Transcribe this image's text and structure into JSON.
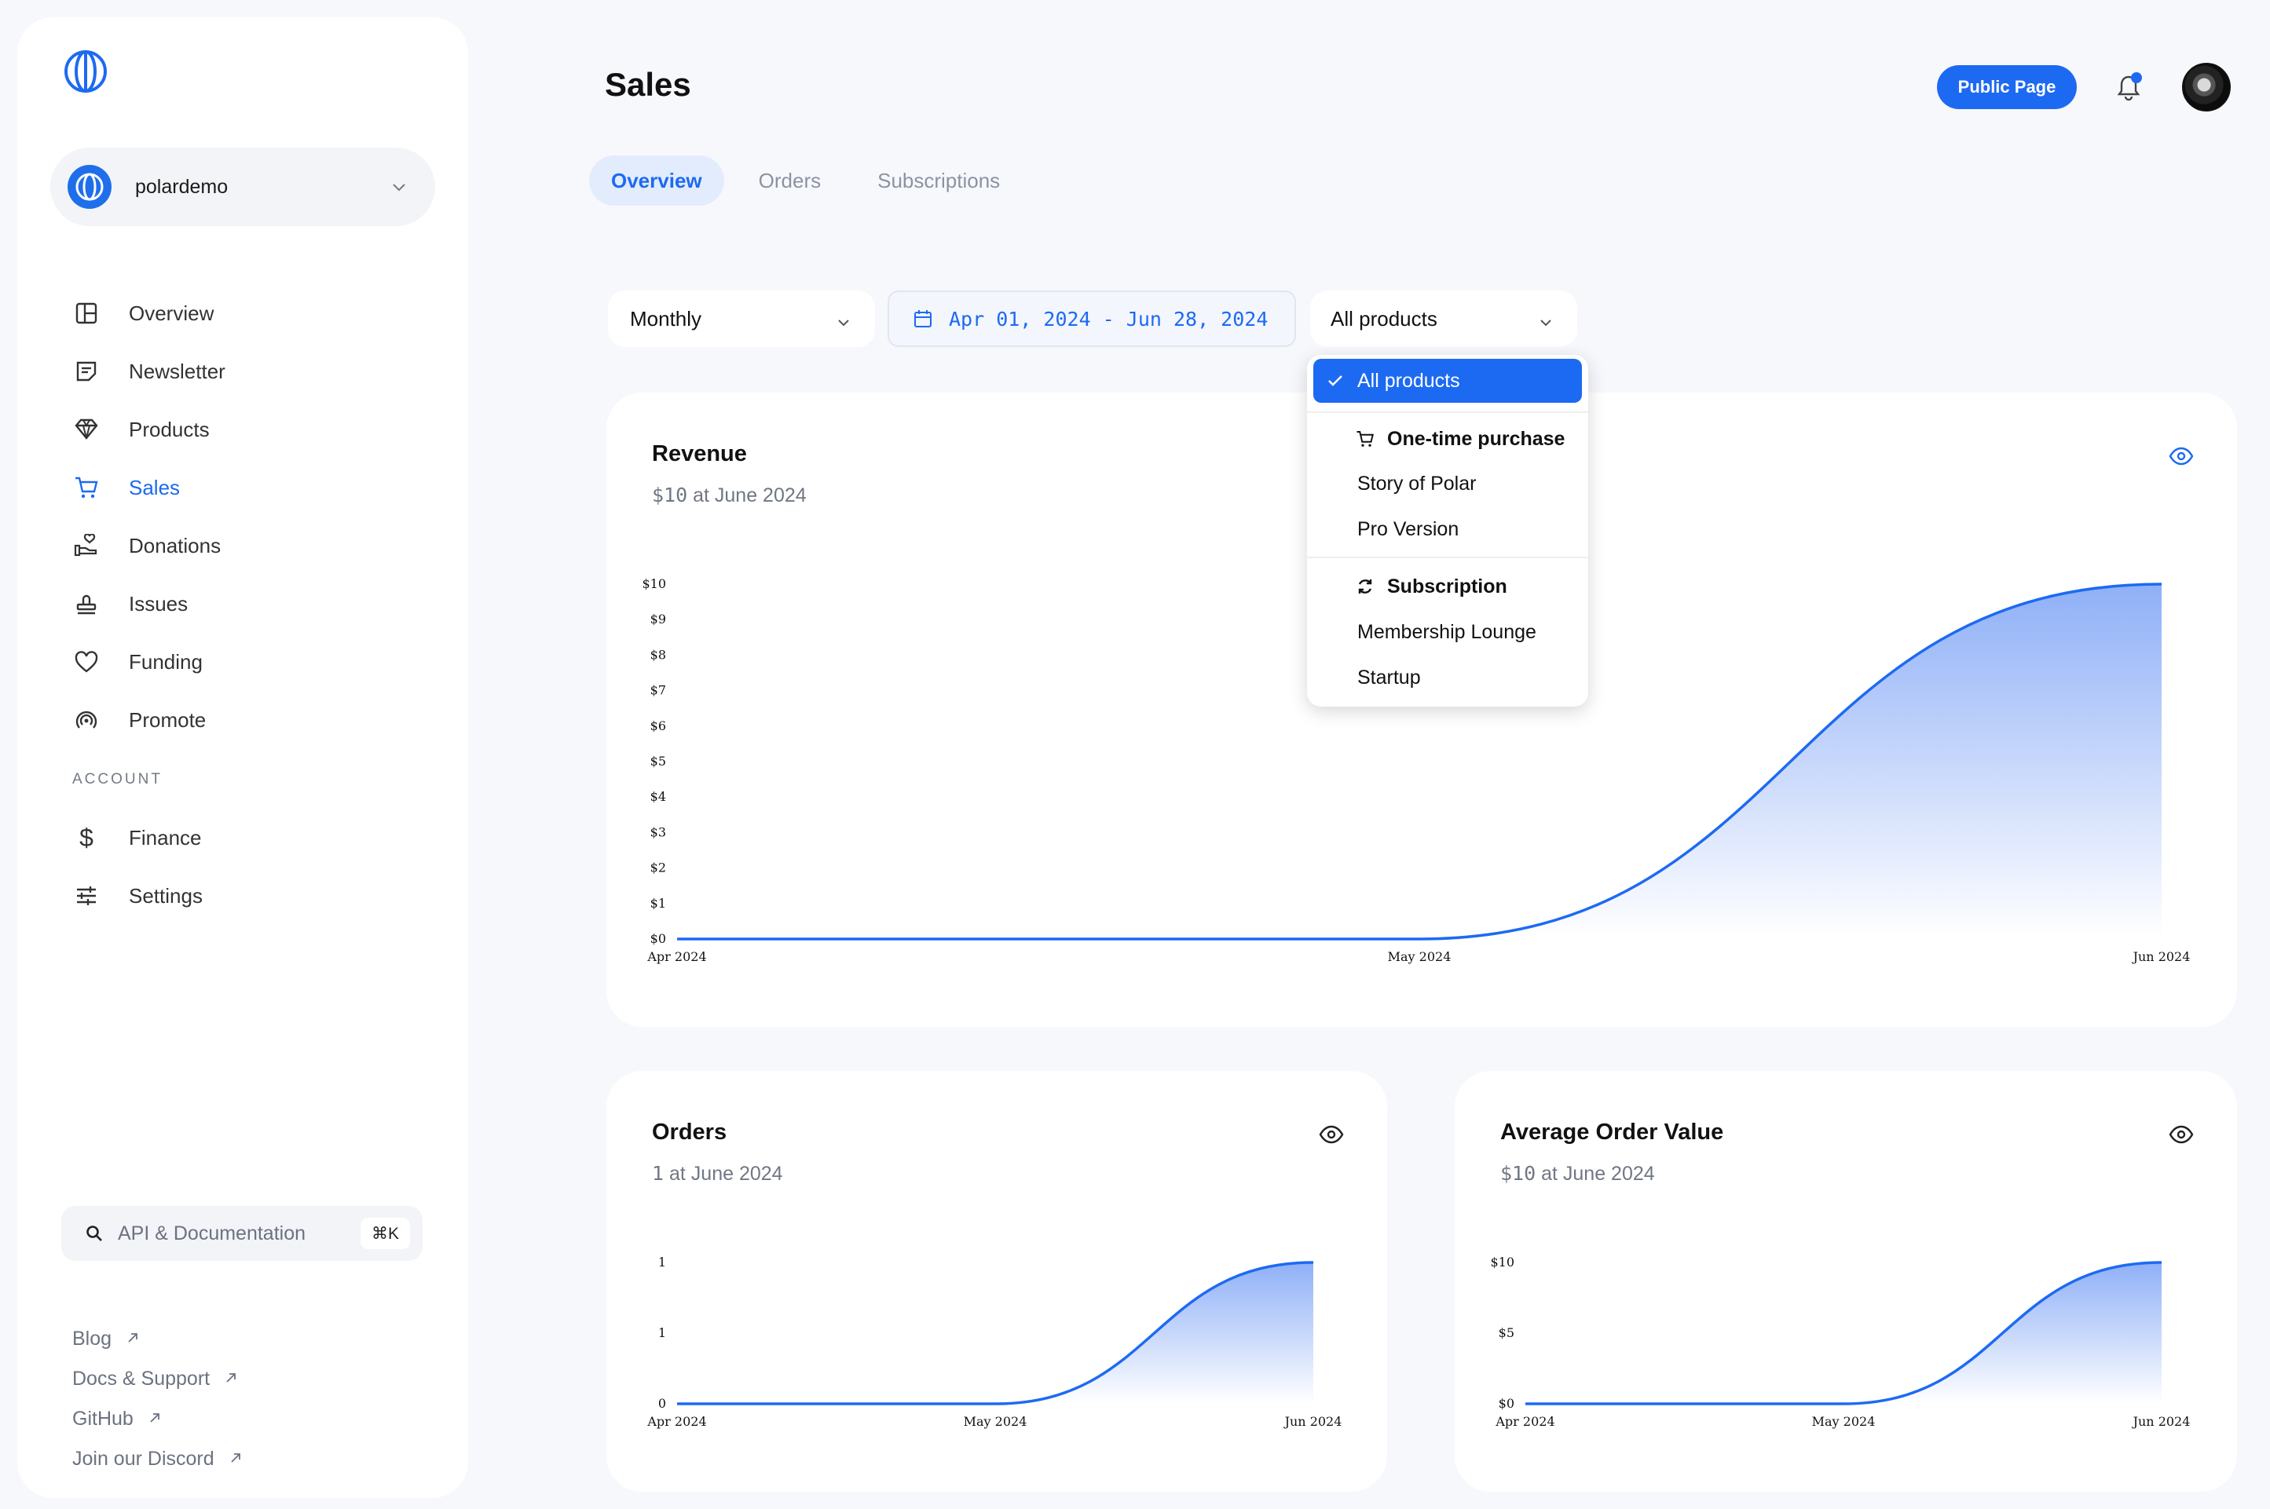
{
  "org": {
    "name": "polardemo"
  },
  "nav": {
    "items": [
      {
        "label": "Overview",
        "icon": "layout-icon"
      },
      {
        "label": "Newsletter",
        "icon": "newsletter-icon"
      },
      {
        "label": "Products",
        "icon": "diamond-icon"
      },
      {
        "label": "Sales",
        "icon": "cart-icon",
        "active": true
      },
      {
        "label": "Donations",
        "icon": "donation-icon"
      },
      {
        "label": "Issues",
        "icon": "stamp-icon"
      },
      {
        "label": "Funding",
        "icon": "heart-icon"
      },
      {
        "label": "Promote",
        "icon": "broadcast-icon"
      }
    ],
    "account_label": "ACCOUNT",
    "account_items": [
      {
        "label": "Finance",
        "icon": "dollar-icon"
      },
      {
        "label": "Settings",
        "icon": "sliders-icon"
      }
    ]
  },
  "api_search": {
    "label": "API & Documentation",
    "shortcut": "⌘K"
  },
  "footer_links": [
    "Blog",
    "Docs & Support",
    "GitHub",
    "Join our Discord"
  ],
  "header": {
    "title": "Sales",
    "public_page_label": "Public Page"
  },
  "tabs": [
    "Overview",
    "Orders",
    "Subscriptions"
  ],
  "filters": {
    "interval": "Monthly",
    "date_range": "Apr 01, 2024 - Jun 28, 2024",
    "product": "All products"
  },
  "product_menu": {
    "selected": "All products",
    "groups": [
      {
        "label": "One-time purchase",
        "icon": "cart-icon",
        "items": [
          "Story of Polar",
          "Pro Version"
        ]
      },
      {
        "label": "Subscription",
        "icon": "refresh-icon",
        "items": [
          "Membership Lounge",
          "Startup"
        ]
      }
    ]
  },
  "cards": {
    "revenue": {
      "title": "Revenue",
      "sub_prefix": "$10",
      "sub_suffix": " at June 2024"
    },
    "orders": {
      "title": "Orders",
      "sub_prefix": "1",
      "sub_suffix": " at June 2024"
    },
    "aov": {
      "title": "Average Order Value",
      "sub_prefix": "$10",
      "sub_suffix": " at June 2024"
    }
  },
  "colors": {
    "accent": "#1d6af2",
    "fill_top": "#8fb0f7",
    "fill_bottom": "#ffffff"
  },
  "chart_data": [
    {
      "id": "revenue",
      "type": "area",
      "title": "Revenue",
      "x": [
        "Apr 2024",
        "May 2024",
        "Jun 2024"
      ],
      "y": [
        0,
        0,
        10
      ],
      "y_ticks": [
        "$0",
        "$1",
        "$2",
        "$3",
        "$4",
        "$5",
        "$6",
        "$7",
        "$8",
        "$9",
        "$10"
      ],
      "ylim": [
        0,
        10
      ],
      "grid": false
    },
    {
      "id": "orders",
      "type": "area",
      "title": "Orders",
      "x": [
        "Apr 2024",
        "May 2024",
        "Jun 2024"
      ],
      "y": [
        0,
        0,
        1
      ],
      "y_ticks": [
        "0",
        "1",
        "1"
      ],
      "ylim": [
        0,
        1
      ],
      "grid": false
    },
    {
      "id": "aov",
      "type": "area",
      "title": "Average Order Value",
      "x": [
        "Apr 2024",
        "May 2024",
        "Jun 2024"
      ],
      "y": [
        0,
        0,
        10
      ],
      "y_ticks": [
        "$0",
        "$5",
        "$10"
      ],
      "ylim": [
        0,
        10
      ],
      "grid": false
    }
  ]
}
